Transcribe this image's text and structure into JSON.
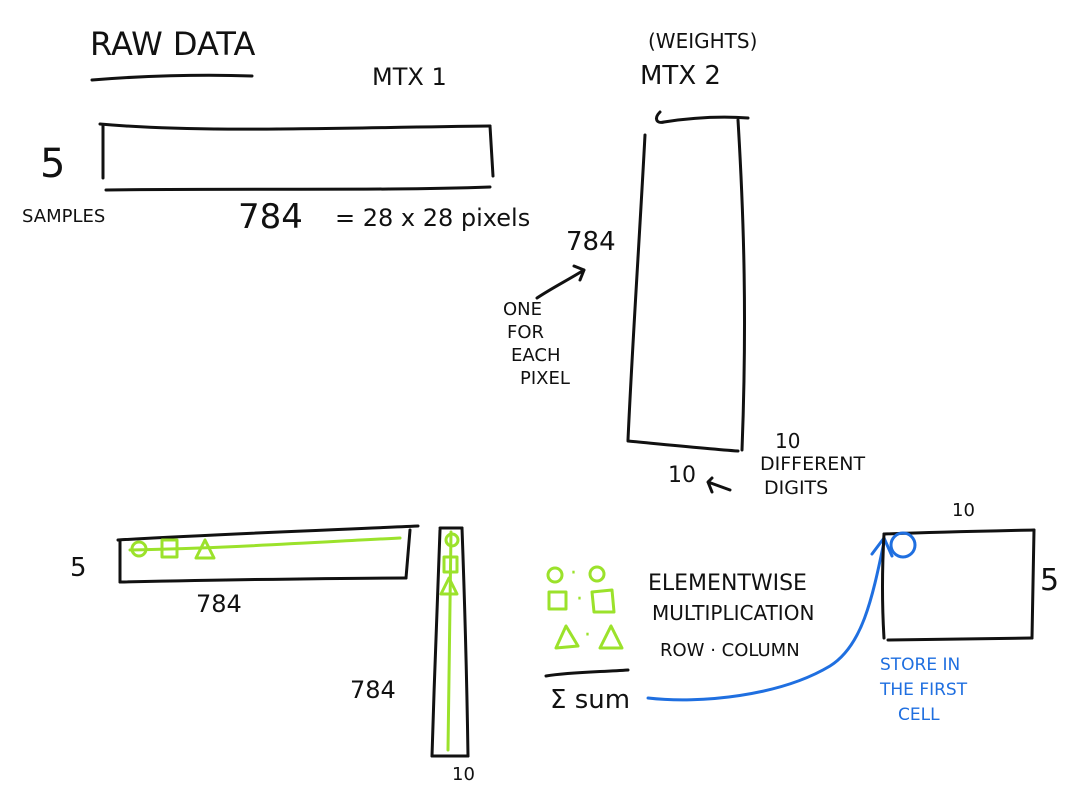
{
  "colors": {
    "ink": "#111111",
    "accent_green": "#9be22b",
    "accent_blue": "#1f6fe0"
  },
  "top": {
    "title": "RAW DATA",
    "mtx1_label": "MTX 1",
    "weights_label": "(WEIGHTS)",
    "mtx2_label": "MTX 2",
    "samples_count": "5",
    "samples_label": "SAMPLES",
    "pixels_count": "784",
    "pixels_formula": "= 28 x 28 pixels",
    "mtx2_rows": "784",
    "one_for_each_pixel": [
      "ONE",
      "FOR",
      "EACH",
      "PIXEL"
    ],
    "mtx2_cols": "10",
    "different_digits_count": "10",
    "different_digits_label": [
      "DIFFERENT",
      "DIGITS"
    ]
  },
  "bottom": {
    "row_matrix_rows": "5",
    "row_matrix_cols": "784",
    "col_matrix_rows": "784",
    "col_matrix_cols": "10",
    "legend_dot": "·",
    "elementwise_lines": [
      "ELEMENTWISE",
      "MULTIPLICATION",
      "ROW · COLUMN"
    ],
    "sum_label": "Σ sum",
    "result_cols": "10",
    "result_rows": "5",
    "store_note": [
      "STORE IN",
      "THE FIRST",
      "CELL"
    ]
  }
}
